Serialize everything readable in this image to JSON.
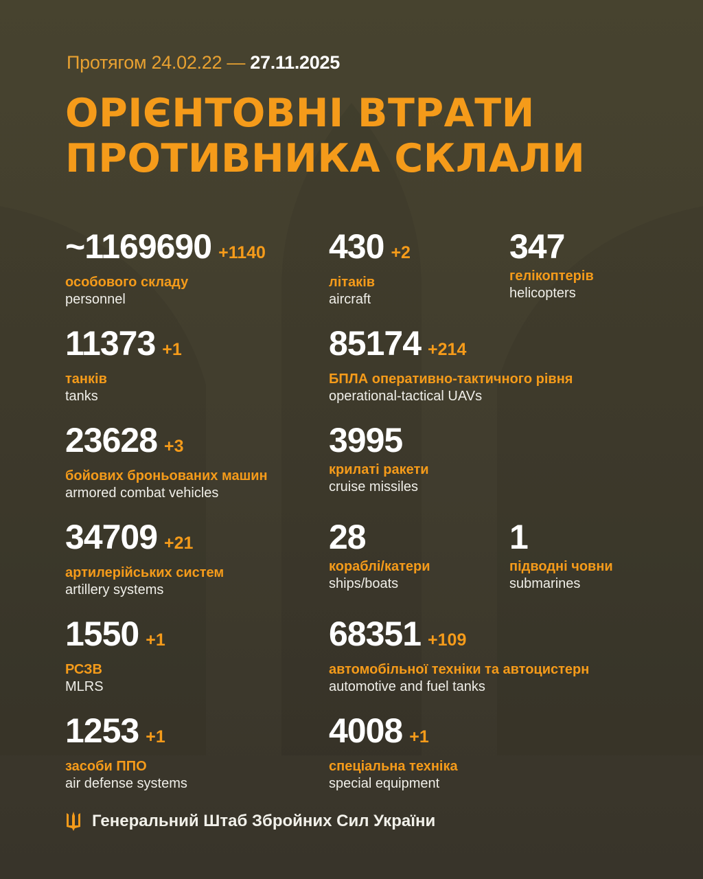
{
  "header": {
    "period_prefix": "Протягом 24.02.22 —",
    "period_end": "27.11.2025",
    "title_line1": "ОРІЄНТОВНІ ВТРАТИ",
    "title_line2": "ПРОТИВНИКА СКЛАЛИ"
  },
  "colors": {
    "accent": "#f59b1a",
    "background": "#433f2f",
    "text": "#ffffff"
  },
  "items": [
    {
      "value": "~1169690",
      "delta": "+1140",
      "ua": "особового складу",
      "en": "personnel"
    },
    {
      "value": "430",
      "delta": "+2",
      "ua": "літаків",
      "en": "aircraft"
    },
    {
      "value": "347",
      "delta": "",
      "ua": "гелікоптерів",
      "en": "helicopters"
    },
    {
      "value": "11373",
      "delta": "+1",
      "ua": "танків",
      "en": "tanks"
    },
    {
      "value": "85174",
      "delta": "+214",
      "ua": "БПЛА оперативно-тактичного рівня",
      "en": "operational-tactical UAVs"
    },
    {
      "value": "23628",
      "delta": "+3",
      "ua": "бойових броньованих машин",
      "en": "armored combat vehicles"
    },
    {
      "value": "3995",
      "delta": "",
      "ua": "крилаті ракети",
      "en": "cruise missiles"
    },
    {
      "value": "34709",
      "delta": "+21",
      "ua": "артилерійських систем",
      "en": "artillery systems"
    },
    {
      "value": "28",
      "delta": "",
      "ua": "кораблі/катери",
      "en": "ships/boats"
    },
    {
      "value": "1",
      "delta": "",
      "ua": "підводні човни",
      "en": "submarines"
    },
    {
      "value": "1550",
      "delta": "+1",
      "ua": "РСЗВ",
      "en": "MLRS"
    },
    {
      "value": "68351",
      "delta": "+109",
      "ua": "автомобільної техніки та автоцистерн",
      "en": "automotive and fuel tanks"
    },
    {
      "value": "1253",
      "delta": "+1",
      "ua": "засоби ППО",
      "en": "air defense systems"
    },
    {
      "value": "4008",
      "delta": "+1",
      "ua": "спеціальна техніка",
      "en": "special equipment"
    }
  ],
  "footer": {
    "icon": "trident-icon",
    "text": "Генеральний Штаб Збройних Сил України"
  }
}
